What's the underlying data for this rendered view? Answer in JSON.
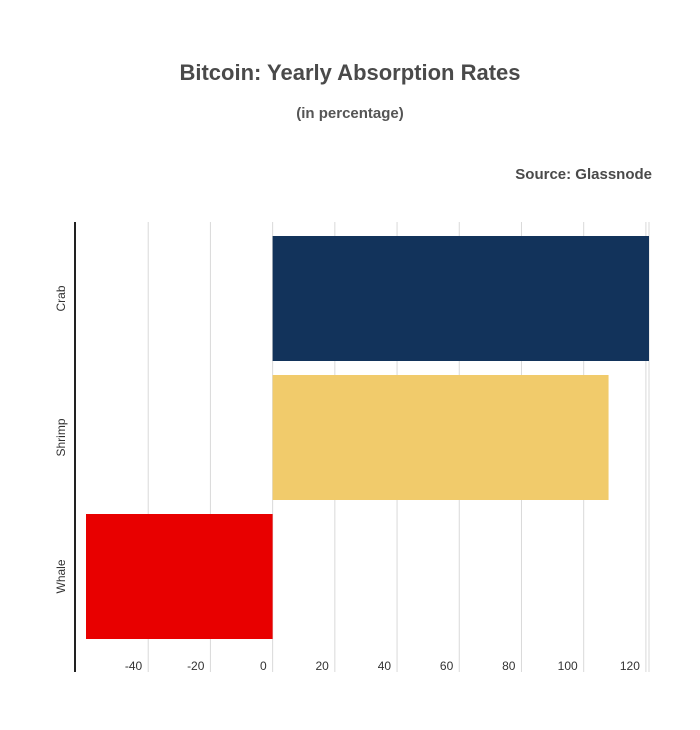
{
  "chart_data": {
    "type": "bar",
    "orientation": "horizontal",
    "title": "Bitcoin: Yearly Absorption Rates",
    "subtitle": "(in percentage)",
    "source": "Source: Glassnode",
    "categories": [
      "Crab",
      "Shrimp",
      "Whale"
    ],
    "values": [
      121,
      108,
      -60
    ],
    "colors": [
      "#12335b",
      "#f1cb6b",
      "#e80000"
    ],
    "xlim": [
      -60,
      121
    ],
    "xticks": [
      -40,
      -20,
      0,
      20,
      40,
      60,
      80,
      100,
      120
    ],
    "grid": true,
    "legend": "none"
  }
}
